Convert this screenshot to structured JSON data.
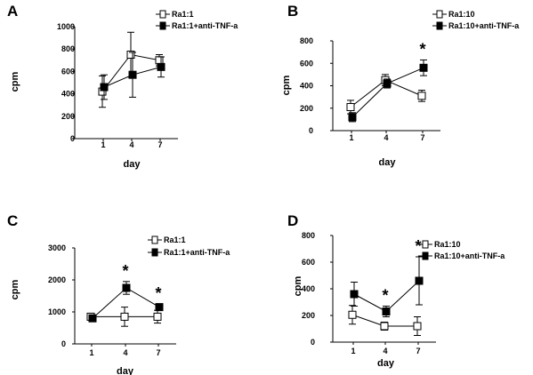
{
  "chart_data": [
    {
      "panel": "A",
      "type": "line",
      "xlabel": "day",
      "ylabel": "cpm",
      "x": [
        1,
        4,
        7
      ],
      "xticks": [
        "1",
        "4",
        "7"
      ],
      "ylim": [
        0,
        1000
      ],
      "yticks": [
        "0",
        "200",
        "400",
        "600",
        "800",
        "1000"
      ],
      "series": [
        {
          "name": "Ra1:1",
          "marker": "open-square",
          "values": [
            420,
            750,
            700
          ],
          "err": [
            140,
            200,
            50
          ]
        },
        {
          "name": "Ra1:1+anti-TNF-a",
          "marker": "filled-square",
          "values": [
            460,
            570,
            640
          ],
          "err": [
            110,
            200,
            90
          ]
        }
      ],
      "annotations": []
    },
    {
      "panel": "B",
      "type": "line",
      "xlabel": "day",
      "ylabel": "cpm",
      "x": [
        1,
        4,
        7
      ],
      "xticks": [
        "1",
        "4",
        "7"
      ],
      "ylim": [
        0,
        800
      ],
      "yticks": [
        "0",
        "200",
        "400",
        "600",
        "800"
      ],
      "series": [
        {
          "name": "Ra1:10",
          "marker": "open-square",
          "values": [
            210,
            450,
            310
          ],
          "err": [
            60,
            50,
            50
          ]
        },
        {
          "name": "Ra1:10+anti-TNF-a",
          "marker": "filled-square",
          "values": [
            120,
            420,
            560
          ],
          "err": [
            40,
            40,
            70
          ]
        }
      ],
      "annotations": [
        {
          "x": 7,
          "text": "*"
        }
      ]
    },
    {
      "panel": "C",
      "type": "line",
      "xlabel": "day",
      "ylabel": "cpm",
      "x": [
        1,
        4,
        7
      ],
      "xticks": [
        "1",
        "4",
        "7"
      ],
      "ylim": [
        0,
        3000
      ],
      "yticks": [
        "0",
        "1000",
        "2000",
        "3000"
      ],
      "series": [
        {
          "name": "Ra1:1",
          "marker": "open-square",
          "values": [
            850,
            850,
            850
          ],
          "err": [
            0,
            300,
            200
          ]
        },
        {
          "name": "Ra1:1+anti-TNF-a",
          "marker": "filled-square",
          "values": [
            800,
            1750,
            1150
          ],
          "err": [
            50,
            200,
            100
          ]
        }
      ],
      "annotations": [
        {
          "x": 4,
          "text": "*"
        },
        {
          "x": 7,
          "text": "*"
        }
      ]
    },
    {
      "panel": "D",
      "type": "line",
      "xlabel": "day",
      "ylabel": "cpm",
      "x": [
        1,
        4,
        7
      ],
      "xticks": [
        "1",
        "4",
        "7"
      ],
      "ylim": [
        0,
        800
      ],
      "yticks": [
        "0",
        "200",
        "400",
        "600",
        "800"
      ],
      "series": [
        {
          "name": "Ra1:10",
          "marker": "open-square",
          "values": [
            205,
            120,
            120
          ],
          "err": [
            70,
            30,
            70
          ]
        },
        {
          "name": "Ra1:10+anti-TNF-a",
          "marker": "filled-square",
          "values": [
            360,
            230,
            460
          ],
          "err": [
            90,
            40,
            180
          ]
        }
      ],
      "annotations": [
        {
          "x": 4,
          "text": "*"
        },
        {
          "x": 7,
          "text": "*"
        }
      ]
    }
  ]
}
